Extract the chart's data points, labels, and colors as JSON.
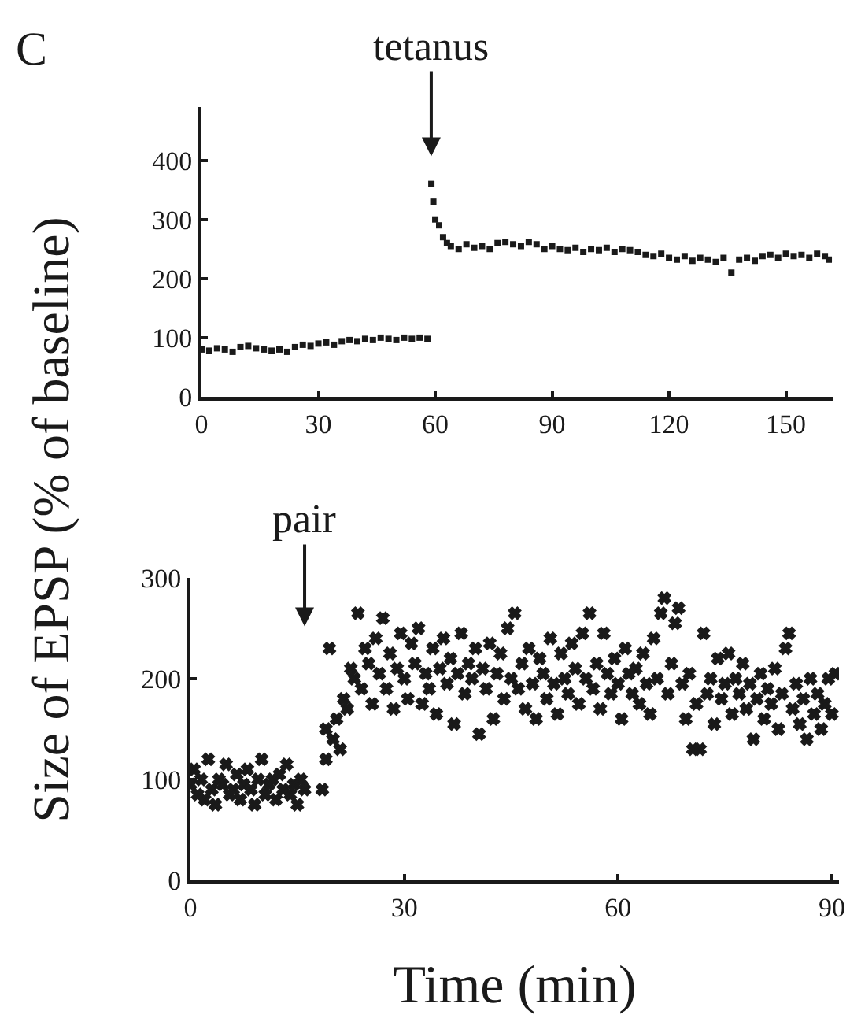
{
  "chart_data": [
    {
      "type": "scatter",
      "marker": "square",
      "color": "#1a1a1a",
      "xlim": [
        0,
        162
      ],
      "ylim": [
        0,
        490
      ],
      "xticks": [
        0,
        30,
        60,
        90,
        120,
        150
      ],
      "yticks": [
        0,
        100,
        200,
        300,
        400
      ],
      "annotations": [
        "C",
        "tetanus"
      ],
      "x": [
        0,
        2,
        4,
        6,
        8,
        10,
        12,
        14,
        16,
        18,
        20,
        22,
        24,
        26,
        28,
        30,
        32,
        34,
        36,
        38,
        40,
        42,
        44,
        46,
        48,
        50,
        52,
        54,
        56,
        58,
        59,
        59.5,
        60,
        61,
        62,
        63,
        64,
        66,
        68,
        70,
        72,
        74,
        76,
        78,
        80,
        82,
        84,
        86,
        88,
        90,
        92,
        94,
        96,
        98,
        100,
        102,
        104,
        106,
        108,
        110,
        112,
        114,
        116,
        118,
        120,
        122,
        124,
        126,
        128,
        130,
        132,
        134,
        136,
        138,
        140,
        142,
        144,
        146,
        148,
        150,
        152,
        154,
        156,
        158,
        160,
        161
      ],
      "values": [
        80,
        78,
        82,
        80,
        76,
        84,
        86,
        82,
        80,
        78,
        80,
        76,
        84,
        88,
        86,
        90,
        92,
        88,
        94,
        96,
        94,
        98,
        96,
        100,
        98,
        96,
        100,
        98,
        100,
        98,
        360,
        330,
        300,
        290,
        270,
        260,
        255,
        250,
        258,
        252,
        255,
        250,
        260,
        262,
        258,
        255,
        262,
        258,
        250,
        255,
        250,
        248,
        252,
        245,
        250,
        248,
        252,
        245,
        250,
        248,
        245,
        240,
        238,
        242,
        235,
        232,
        238,
        230,
        235,
        232,
        228,
        235,
        210,
        232,
        235,
        230,
        238,
        240,
        235,
        242,
        238,
        240,
        235,
        242,
        238,
        232
      ]
    },
    {
      "type": "scatter",
      "marker": "cross",
      "color": "#1a1a1a",
      "xlim": [
        0,
        91
      ],
      "ylim": [
        0,
        300
      ],
      "xticks": [
        0,
        30,
        60,
        90
      ],
      "yticks": [
        0,
        100,
        200,
        300
      ],
      "xlabel": "Time (min)",
      "ylabel": "Size of EPSP (% of baseline)",
      "annotations": [
        "pair"
      ],
      "x": [
        0,
        0.5,
        1,
        1.5,
        2,
        2.5,
        3,
        3.5,
        4,
        4.5,
        5,
        5.5,
        6,
        6.5,
        7,
        7.5,
        8,
        8.5,
        9,
        9.5,
        10,
        10.5,
        11,
        11.5,
        12,
        12.5,
        13,
        13.5,
        14,
        14.5,
        15,
        15.5,
        16,
        18.5,
        19,
        19,
        19.5,
        20,
        20.5,
        21,
        21.5,
        22,
        22.5,
        23,
        23.5,
        24,
        24.5,
        25,
        25.5,
        26,
        26.5,
        27,
        27.5,
        28,
        28.5,
        29,
        29.5,
        30,
        30.5,
        31,
        31.5,
        32,
        32.5,
        33,
        33.5,
        34,
        34.5,
        35,
        35.5,
        36,
        36.5,
        37,
        37.5,
        38,
        38.5,
        39,
        39.5,
        40,
        40.5,
        41,
        41.5,
        42,
        42.5,
        43,
        43.5,
        44,
        44.5,
        45,
        45.5,
        46,
        46.5,
        47,
        47.5,
        48,
        48.5,
        49,
        49.5,
        50,
        50.5,
        51,
        51.5,
        52,
        52.5,
        53,
        53.5,
        54,
        54.5,
        55,
        55.5,
        56,
        56.5,
        57,
        57.5,
        58,
        58.5,
        59,
        59.5,
        60,
        60.5,
        61,
        61.5,
        62,
        62.5,
        63,
        63.5,
        64,
        64.5,
        65,
        65.5,
        66,
        66.5,
        67,
        67.5,
        68,
        68.5,
        69,
        69.5,
        70,
        70.5,
        71,
        71.5,
        72,
        72.5,
        73,
        73.5,
        74,
        74.5,
        75,
        75.5,
        76,
        76.5,
        77,
        77.5,
        78,
        78.5,
        79,
        79.5,
        80,
        80.5,
        81,
        81.5,
        82,
        82.5,
        83,
        83.5,
        84,
        84.5,
        85,
        85.5,
        86,
        86.5,
        87,
        87.5,
        88,
        88.5,
        89,
        89.5,
        90,
        90.5
      ],
      "values": [
        95,
        110,
        85,
        100,
        80,
        120,
        90,
        75,
        100,
        95,
        115,
        85,
        90,
        105,
        80,
        95,
        110,
        90,
        75,
        100,
        120,
        85,
        95,
        100,
        80,
        105,
        90,
        115,
        85,
        95,
        75,
        100,
        90,
        90,
        120,
        150,
        230,
        140,
        160,
        130,
        180,
        170,
        210,
        200,
        265,
        190,
        230,
        215,
        175,
        240,
        205,
        260,
        190,
        225,
        170,
        210,
        245,
        200,
        180,
        235,
        215,
        250,
        175,
        205,
        190,
        230,
        165,
        210,
        240,
        195,
        220,
        155,
        205,
        245,
        185,
        215,
        200,
        230,
        145,
        210,
        190,
        235,
        160,
        205,
        225,
        180,
        250,
        200,
        265,
        190,
        215,
        170,
        230,
        195,
        160,
        220,
        205,
        180,
        240,
        195,
        165,
        225,
        200,
        185,
        235,
        210,
        175,
        245,
        200,
        265,
        190,
        215,
        170,
        245,
        205,
        185,
        220,
        195,
        160,
        230,
        205,
        185,
        210,
        175,
        225,
        195,
        165,
        240,
        200,
        265,
        280,
        185,
        215,
        255,
        270,
        195,
        160,
        205,
        130,
        175,
        130,
        245,
        185,
        200,
        155,
        220,
        180,
        195,
        225,
        165,
        200,
        185,
        215,
        170,
        195,
        140,
        180,
        205,
        160,
        190,
        175,
        210,
        150,
        185,
        230,
        245,
        170,
        195,
        155,
        180,
        140,
        200,
        165,
        185,
        150,
        175,
        200,
        165,
        205
      ]
    }
  ]
}
